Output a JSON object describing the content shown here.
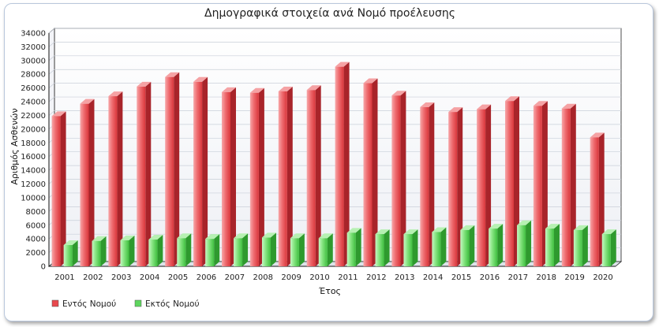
{
  "chart_data": {
    "type": "bar",
    "title": "Δημογραφικά στοιχεία ανά Νομό προέλευσης",
    "xlabel": "Έτος",
    "ylabel": "Αριθμός Ασθενών",
    "ylim": [
      0,
      34000
    ],
    "ytick_step": 2000,
    "grid": true,
    "legend_position": "bottom-left",
    "categories": [
      "2001",
      "2002",
      "2003",
      "2004",
      "2005",
      "2006",
      "2007",
      "2008",
      "2009",
      "2010",
      "2011",
      "2012",
      "2013",
      "2014",
      "2015",
      "2016",
      "2017",
      "2018",
      "2019",
      "2020"
    ],
    "series": [
      {
        "name": "Εντός Νομού",
        "color": "#e8484d",
        "values": [
          21900,
          23700,
          24800,
          26200,
          27600,
          26900,
          25400,
          25300,
          25500,
          25700,
          29100,
          26700,
          24900,
          23200,
          22500,
          22900,
          24100,
          23400,
          23000,
          18800
        ]
      },
      {
        "name": "Εκτός Νομού",
        "color": "#5ed65e",
        "values": [
          3100,
          3700,
          3800,
          3900,
          4100,
          4000,
          4100,
          4200,
          4100,
          4100,
          4900,
          4700,
          4700,
          5000,
          5300,
          5500,
          6000,
          5500,
          5300,
          4700
        ]
      }
    ]
  }
}
